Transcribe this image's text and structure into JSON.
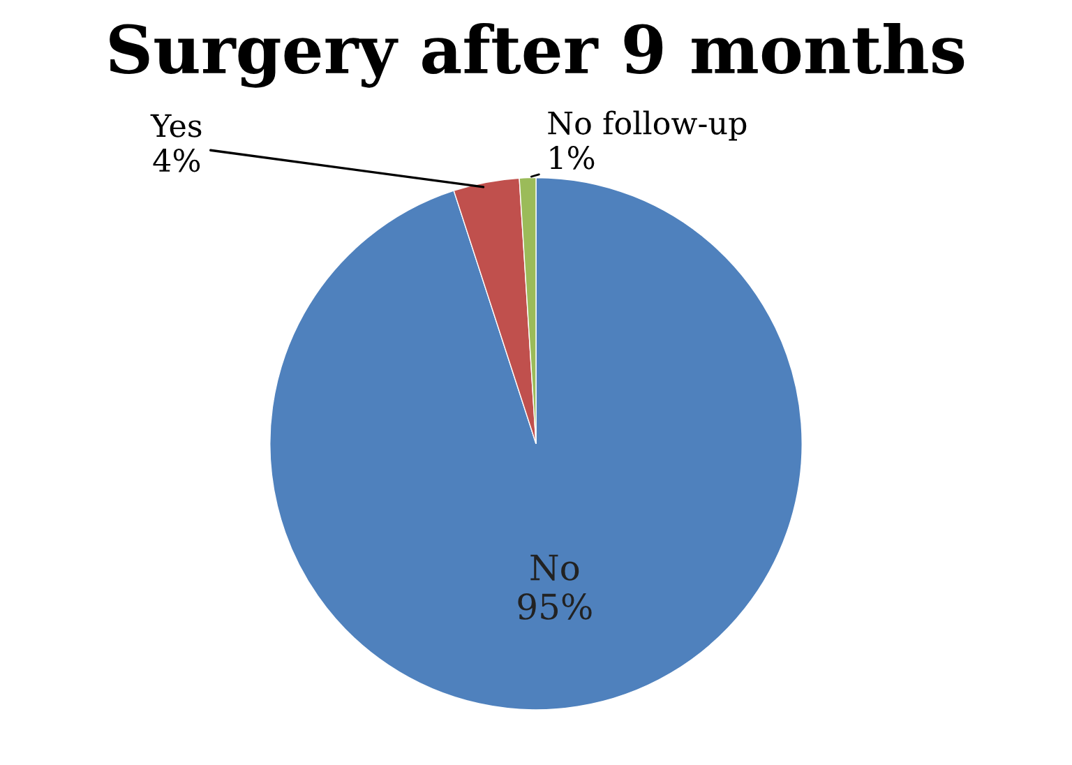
{
  "chart_data": {
    "type": "pie",
    "title": "Surgery after 9 months",
    "categories": [
      "No",
      "Yes",
      "No follow-up"
    ],
    "values": [
      95,
      4,
      1
    ],
    "value_labels": [
      "95%",
      "4%",
      "1%"
    ],
    "colors": [
      "#4f81bd",
      "#c0504d",
      "#9bbb59"
    ]
  }
}
